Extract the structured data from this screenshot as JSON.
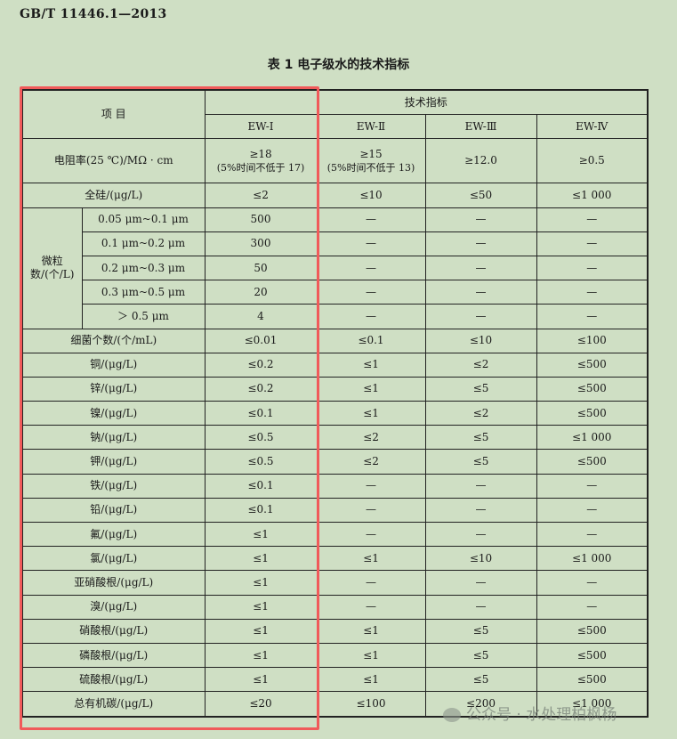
{
  "header": {
    "standard": "GB/T 11446.1—2013"
  },
  "caption": "表 1   电子级水的技术指标",
  "table": {
    "item_header": "项 目",
    "group_header": "技术指标",
    "grades": [
      "EW-Ⅰ",
      "EW-Ⅱ",
      "EW-Ⅲ",
      "EW-Ⅳ"
    ],
    "resistivity": {
      "label": "电阻率(25 ℃)/MΩ · cm",
      "values": [
        [
          "≥18",
          "(5%时间不低于 17)"
        ],
        [
          "≥15",
          "(5%时间不低于 13)"
        ],
        [
          "≥12.0",
          ""
        ],
        [
          "≥0.5",
          ""
        ]
      ]
    },
    "silicon": {
      "label": "全硅/(μg/L)",
      "values": [
        "≤2",
        "≤10",
        "≤50",
        "≤1 000"
      ]
    },
    "particles": {
      "label": "微粒数/(个/L)",
      "rows": [
        {
          "range": "0.05 μm~0.1 μm",
          "values": [
            "500",
            "—",
            "—",
            "—"
          ]
        },
        {
          "range": "0.1 μm~0.2 μm",
          "values": [
            "300",
            "—",
            "—",
            "—"
          ]
        },
        {
          "range": "0.2 μm~0.3 μm",
          "values": [
            "50",
            "—",
            "—",
            "—"
          ]
        },
        {
          "range": "0.3 μm~0.5 μm",
          "values": [
            "20",
            "—",
            "—",
            "—"
          ]
        },
        {
          "range": "＞ 0.5 μm",
          "values": [
            "4",
            "—",
            "—",
            "—"
          ]
        }
      ]
    },
    "rows": [
      {
        "label": "细菌个数/(个/mL)",
        "values": [
          "≤0.01",
          "≤0.1",
          "≤10",
          "≤100"
        ]
      },
      {
        "label": "铜/(μg/L)",
        "values": [
          "≤0.2",
          "≤1",
          "≤2",
          "≤500"
        ]
      },
      {
        "label": "锌/(μg/L)",
        "values": [
          "≤0.2",
          "≤1",
          "≤5",
          "≤500"
        ]
      },
      {
        "label": "镍/(μg/L)",
        "values": [
          "≤0.1",
          "≤1",
          "≤2",
          "≤500"
        ]
      },
      {
        "label": "钠/(μg/L)",
        "values": [
          "≤0.5",
          "≤2",
          "≤5",
          "≤1 000"
        ]
      },
      {
        "label": "钾/(μg/L)",
        "values": [
          "≤0.5",
          "≤2",
          "≤5",
          "≤500"
        ]
      },
      {
        "label": "铁/(μg/L)",
        "values": [
          "≤0.1",
          "—",
          "—",
          "—"
        ]
      },
      {
        "label": "铅/(μg/L)",
        "values": [
          "≤0.1",
          "—",
          "—",
          "—"
        ]
      },
      {
        "label": "氟/(μg/L)",
        "values": [
          "≤1",
          "—",
          "—",
          "—"
        ]
      },
      {
        "label": "氯/(μg/L)",
        "values": [
          "≤1",
          "≤1",
          "≤10",
          "≤1 000"
        ]
      },
      {
        "label": "亚硝酸根/(μg/L)",
        "values": [
          "≤1",
          "—",
          "—",
          "—"
        ]
      },
      {
        "label": "溴/(μg/L)",
        "values": [
          "≤1",
          "—",
          "—",
          "—"
        ]
      },
      {
        "label": "硝酸根/(μg/L)",
        "values": [
          "≤1",
          "≤1",
          "≤5",
          "≤500"
        ]
      },
      {
        "label": "磷酸根/(μg/L)",
        "values": [
          "≤1",
          "≤1",
          "≤5",
          "≤500"
        ]
      },
      {
        "label": "硫酸根/(μg/L)",
        "values": [
          "≤1",
          "≤1",
          "≤5",
          "≤500"
        ]
      },
      {
        "label": "总有机碳/(μg/L)",
        "values": [
          "≤20",
          "≤100",
          "≤200",
          "≤1 000"
        ]
      }
    ]
  },
  "watermark": "公众号 · 水处理柏枫杨",
  "colors": {
    "background": "#cfdfc4",
    "highlight": "#f05a5a"
  }
}
